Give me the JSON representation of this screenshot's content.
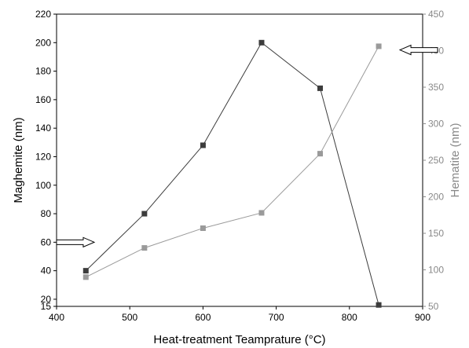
{
  "chart_data": {
    "type": "line",
    "xlabel": "Heat-treatment Teamprature (°C)",
    "ylabel_left": "Maghemite (nm)",
    "ylabel_right": "Hematite (nm)",
    "xlim": [
      400,
      900
    ],
    "ylim_left": [
      15,
      220
    ],
    "ylim_right": [
      50,
      450
    ],
    "x_ticks": [
      400,
      500,
      600,
      700,
      800,
      900
    ],
    "y_left_ticks": [
      15,
      20,
      40,
      60,
      80,
      100,
      120,
      140,
      160,
      180,
      200,
      220
    ],
    "y_right_ticks": [
      50,
      100,
      150,
      200,
      250,
      300,
      350,
      400,
      450
    ],
    "grid": false,
    "series": [
      {
        "axis": "left",
        "color": "#3c3c3c",
        "x": [
          440,
          520,
          600,
          680,
          760,
          840
        ],
        "values": [
          40,
          80,
          128,
          200,
          168,
          16
        ]
      },
      {
        "axis": "right",
        "color": "#9a9a9a",
        "x": [
          440,
          520,
          600,
          680,
          760,
          840
        ],
        "values": [
          90,
          130,
          157,
          178,
          259,
          406
        ]
      }
    ],
    "annotations": [
      {
        "type": "arrow",
        "direction": "right",
        "points_to": "left-axis-series",
        "x": 430,
        "y_left": 60
      },
      {
        "type": "arrow",
        "direction": "left",
        "points_to": "right-axis-series",
        "x": 855,
        "y_right": 401
      }
    ]
  }
}
